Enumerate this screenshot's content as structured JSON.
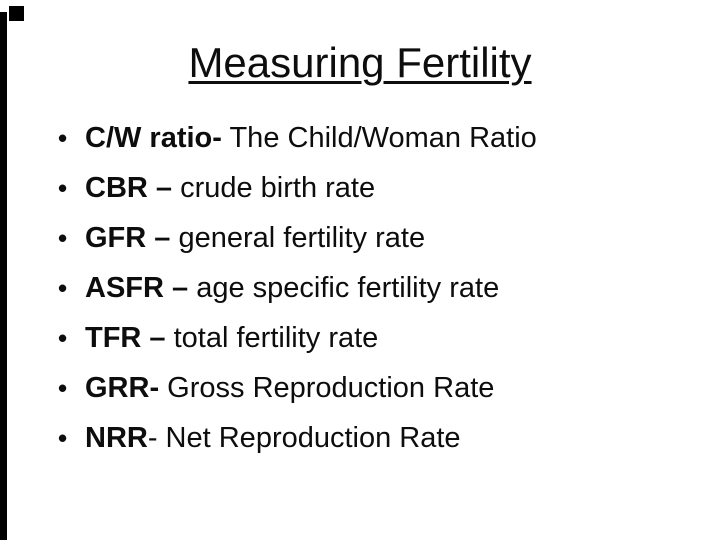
{
  "slide": {
    "title": "Measuring Fertility",
    "bullet_glyph": "•",
    "bullets": [
      {
        "term": "C/W ratio-",
        "rest": " The Child/Woman Ratio"
      },
      {
        "term": "CBR –",
        "rest": " crude birth rate"
      },
      {
        "term": "GFR –",
        "rest": " general fertility rate"
      },
      {
        "term": "ASFR –",
        "rest": " age specific fertility rate"
      },
      {
        "term": "TFR –",
        "rest": " total fertility rate"
      },
      {
        "term": "GRR-",
        "rest": " Gross Reproduction Rate"
      },
      {
        "term": "NRR",
        "rest": "- Net Reproduction Rate"
      }
    ],
    "colors": {
      "text": "#0d0d0d",
      "background": "#ffffff",
      "edge_marks": "#000000"
    }
  }
}
